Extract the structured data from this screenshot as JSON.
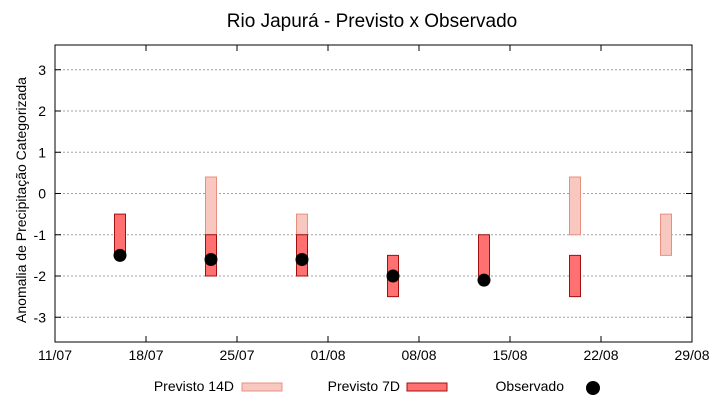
{
  "chart_data": {
    "type": "range-bar+scatter",
    "title": "Rio Japurá - Previsto x Observado",
    "ylabel": "Anomalia de Precipitação Categorizada",
    "xlabel": "",
    "x_ticks": [
      "11/07",
      "18/07",
      "25/07",
      "01/08",
      "08/08",
      "15/08",
      "22/08",
      "29/08"
    ],
    "x_range_days": [
      0,
      49
    ],
    "y_ticks": [
      3,
      2,
      1,
      0,
      -1,
      -2,
      -3
    ],
    "ylim": [
      -3.6,
      3.6
    ],
    "grid": true,
    "legend_position": "bottom",
    "series": [
      {
        "name": "Previsto 14D",
        "kind": "range",
        "fill": "#f8c8c0",
        "stroke": "#e89080",
        "points": [
          {
            "x_day": 12,
            "low": -1.0,
            "high": 0.4
          },
          {
            "x_day": 19,
            "low": -1.0,
            "high": -0.5
          },
          {
            "x_day": 40,
            "low": -1.0,
            "high": 0.4
          },
          {
            "x_day": 47,
            "low": -1.5,
            "high": -0.5
          }
        ]
      },
      {
        "name": "Previsto 7D",
        "kind": "range",
        "fill": "#ff7070",
        "stroke": "#a01010",
        "points": [
          {
            "x_day": 5,
            "low": -1.5,
            "high": -0.5
          },
          {
            "x_day": 12,
            "low": -2.0,
            "high": -1.0
          },
          {
            "x_day": 19,
            "low": -2.0,
            "high": -1.0
          },
          {
            "x_day": 26,
            "low": -2.5,
            "high": -1.5
          },
          {
            "x_day": 33,
            "low": -2.0,
            "high": -1.0
          },
          {
            "x_day": 40,
            "low": -2.5,
            "high": -1.5
          }
        ]
      },
      {
        "name": "Observado",
        "kind": "point",
        "color": "#000000",
        "points": [
          {
            "x_day": 5,
            "y": -1.5
          },
          {
            "x_day": 12,
            "y": -1.6
          },
          {
            "x_day": 19,
            "y": -1.6
          },
          {
            "x_day": 26,
            "y": -2.0
          },
          {
            "x_day": 33,
            "y": -2.1
          }
        ]
      }
    ]
  }
}
